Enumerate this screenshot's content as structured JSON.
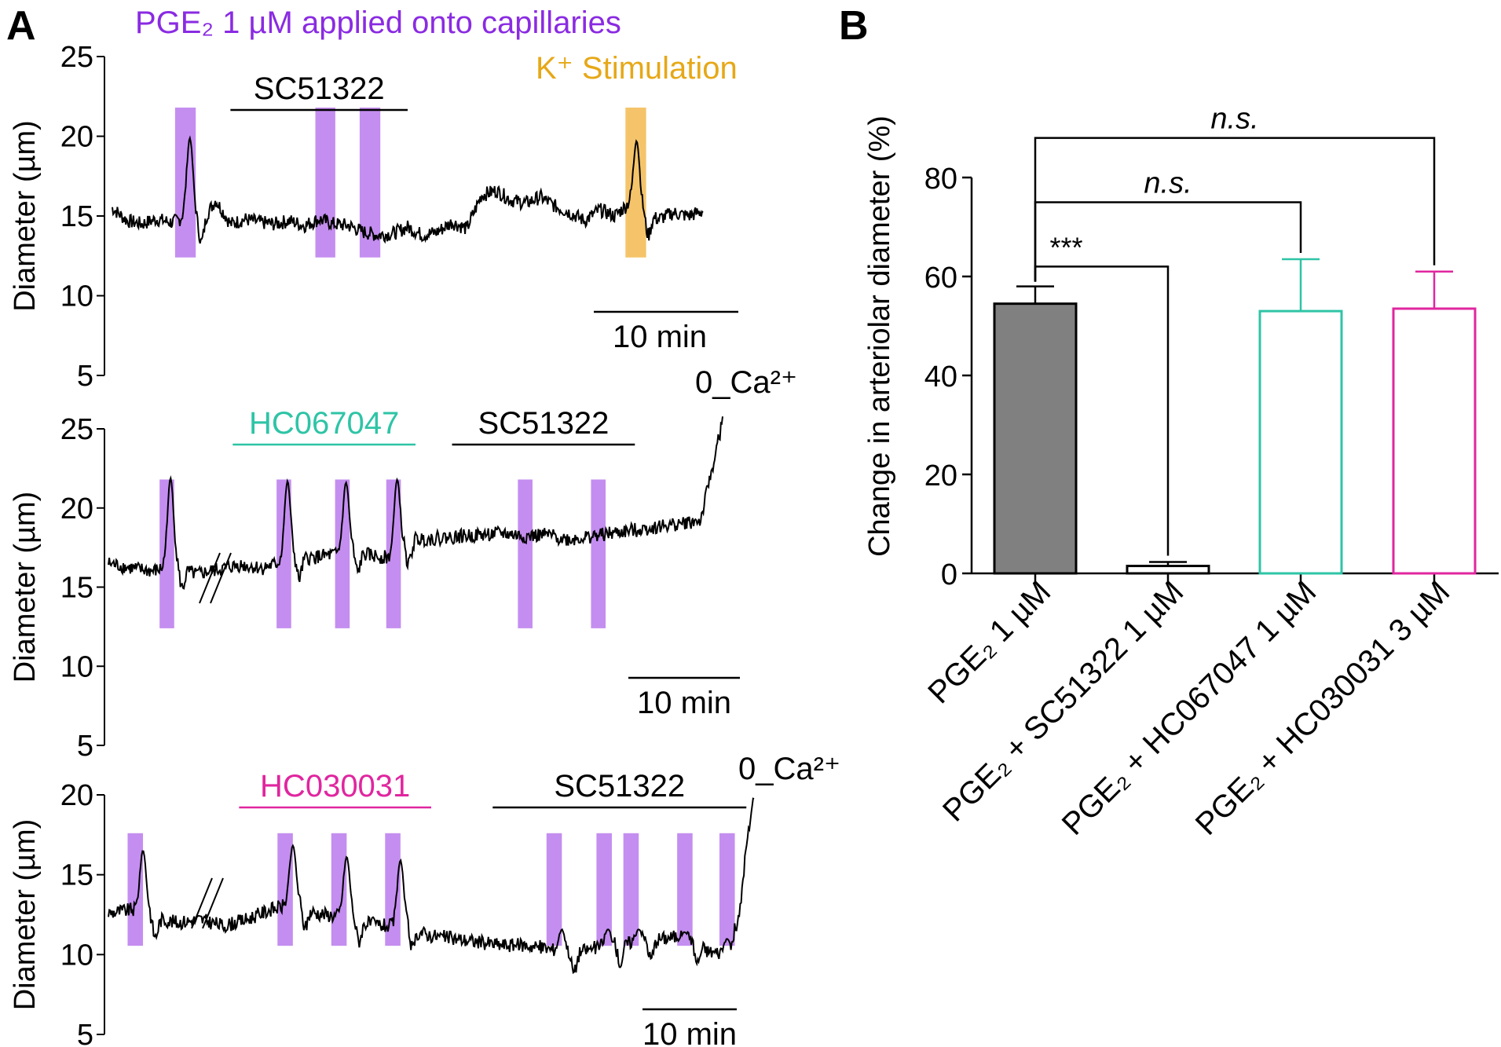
{
  "figure": {
    "panel_a_letter": "A",
    "panel_b_letter": "B",
    "panel_a_title": "PGE₂ 1 µM applied onto capillaries",
    "panel_a_title_color": "#8a2be2",
    "pge2_color": "#c48ef0",
    "k_color": "#f5c46a",
    "k_label_color": "#e6a817"
  },
  "chart_data": [
    {
      "type": "line",
      "panel": "A-top",
      "title": "PGE₂ 1 µM applied onto capillaries",
      "ylabel": "Diameter (µm)",
      "ylim": [
        5,
        25
      ],
      "yticks": [
        "5",
        "10",
        "15",
        "20",
        "25"
      ],
      "trace_color": "#000000",
      "x": [
        0,
        2,
        4,
        6,
        8,
        10,
        12,
        14,
        16,
        18,
        20,
        22,
        24,
        26,
        28,
        30,
        32,
        34,
        36,
        38,
        40,
        42,
        44,
        46,
        48,
        50,
        52,
        54,
        56,
        58,
        60,
        62,
        64,
        66,
        68,
        70,
        72,
        74,
        76,
        78,
        80
      ],
      "y": [
        15.5,
        14.7,
        14.5,
        14.8,
        14.6,
        14.9,
        14.5,
        16.0,
        14.5,
        14.8,
        14.6,
        14.5,
        14.7,
        14.4,
        14.8,
        14.5,
        14.4,
        14.0,
        13.8,
        13.9,
        14.3,
        13.8,
        14.0,
        14.6,
        14.2,
        16.3,
        16.6,
        16.0,
        15.8,
        16.2,
        15.6,
        15.2,
        14.7,
        15.4,
        15.0,
        15.8,
        15.1,
        14.8,
        15.2,
        15.0,
        15.3
      ],
      "peaks": [
        {
          "x": 10.5,
          "value": 20.0
        },
        {
          "x": 71,
          "value": 19.8
        }
      ],
      "annotations": [
        {
          "label": "SC51322",
          "color": "#000000",
          "from": 16,
          "to": 40
        },
        {
          "label": "K⁺ Stimulation",
          "color": "#e6a817",
          "from": 69.5,
          "to": 72.5
        }
      ],
      "pge2_windows": [
        [
          8.5,
          11.3
        ],
        [
          27.5,
          30.2
        ],
        [
          33.5,
          36.3
        ]
      ],
      "k_window": [
        69.5,
        72.3
      ],
      "scale_bar": "10 min",
      "end_label": ""
    },
    {
      "type": "line",
      "panel": "A-middle",
      "ylabel": "Diameter (µm)",
      "ylim": [
        5,
        25
      ],
      "yticks": [
        "5",
        "10",
        "15",
        "20",
        "25"
      ],
      "trace_color": "#000000",
      "x": [
        0,
        3,
        6,
        9,
        12,
        15,
        18,
        21,
        24,
        27,
        30,
        33,
        36,
        39,
        42,
        45,
        48,
        51,
        54,
        57,
        60,
        63,
        66,
        69,
        72,
        75,
        78,
        81,
        84
      ],
      "y": [
        16.5,
        16.2,
        16.0,
        16.3,
        15.8,
        16.1,
        16.4,
        16.2,
        16.6,
        16.8,
        17.0,
        17.2,
        17.0,
        16.8,
        18.0,
        18.1,
        18.2,
        18.3,
        18.4,
        18.2,
        18.3,
        18.0,
        18.2,
        18.4,
        18.6,
        18.8,
        19.0,
        19.2,
        25.5
      ],
      "peaks": [
        {
          "x": 8.5,
          "value": 22.0
        },
        {
          "x": 24.5,
          "value": 21.8
        },
        {
          "x": 32.5,
          "value": 21.7
        },
        {
          "x": 39.5,
          "value": 21.9
        }
      ],
      "annotations": [
        {
          "label": "HC067047",
          "color": "#2ec4a6",
          "from": 17,
          "to": 42
        },
        {
          "label": "SC51322",
          "color": "#000000",
          "from": 47,
          "to": 72
        }
      ],
      "pge2_windows": [
        [
          7.0,
          9.0
        ],
        [
          23.0,
          25.0
        ],
        [
          31.0,
          33.0
        ],
        [
          38.0,
          40.0
        ],
        [
          56.0,
          58.0
        ],
        [
          66.0,
          68.0
        ]
      ],
      "scale_bar": "10 min",
      "end_label": "0_Ca²⁺"
    },
    {
      "type": "line",
      "panel": "A-bottom",
      "ylabel": "Diameter (µm)",
      "ylim": [
        5,
        20
      ],
      "yticks": [
        "5",
        "10",
        "15",
        "20"
      ],
      "trace_color": "#000000",
      "x": [
        0,
        3,
        6,
        9,
        12,
        15,
        18,
        21,
        24,
        27,
        30,
        33,
        36,
        39,
        42,
        45,
        48,
        51,
        54,
        57,
        60,
        63,
        66,
        69,
        72,
        75,
        78,
        81,
        84
      ],
      "y": [
        12.6,
        12.8,
        12.3,
        12.0,
        12.2,
        11.8,
        12.2,
        12.8,
        13.2,
        12.6,
        12.4,
        12.0,
        11.8,
        11.6,
        11.2,
        11.0,
        10.8,
        10.6,
        10.6,
        10.4,
        10.0,
        10.4,
        10.6,
        10.8,
        11.0,
        11.2,
        10.2,
        10.0,
        20.0
      ],
      "peaks": [
        {
          "x": 4.5,
          "value": 16.6
        },
        {
          "x": 24.0,
          "value": 16.9
        },
        {
          "x": 31.0,
          "value": 16.2
        },
        {
          "x": 38.0,
          "value": 16.0
        },
        {
          "x": 59.0,
          "value": 11.6
        },
        {
          "x": 65.0,
          "value": 11.6
        },
        {
          "x": 69.0,
          "value": 11.6
        },
        {
          "x": 75.0,
          "value": 11.4
        },
        {
          "x": 80.5,
          "value": 11.0
        }
      ],
      "annotations": [
        {
          "label": "HC030031",
          "color": "#e0269f",
          "from": 17,
          "to": 42
        },
        {
          "label": "SC51322",
          "color": "#000000",
          "from": 50,
          "to": 83
        }
      ],
      "pge2_windows": [
        [
          2.5,
          4.5
        ],
        [
          22.0,
          24.0
        ],
        [
          29.0,
          31.0
        ],
        [
          36.0,
          38.0
        ],
        [
          57.0,
          59.0
        ],
        [
          63.5,
          65.5
        ],
        [
          67.0,
          69.0
        ],
        [
          74.0,
          76.0
        ],
        [
          79.5,
          81.5
        ]
      ],
      "scale_bar": "10 min",
      "end_label": "0_Ca²⁺"
    },
    {
      "type": "bar",
      "panel": "B",
      "ylabel": "Change in arteriolar diameter (%)",
      "ylim": [
        0,
        80
      ],
      "yticks": [
        "0",
        "20",
        "40",
        "60",
        "80"
      ],
      "categories": [
        "PGE₂ 1 µM",
        "PGE₂ + SC51322 1 µM",
        "PGE₂ + HC067047 1 µM",
        "PGE₂ + HC030031 3 µM"
      ],
      "values": [
        54.5,
        1.5,
        53.0,
        53.5
      ],
      "errors": [
        3.5,
        0.8,
        10.5,
        7.5
      ],
      "fills": [
        "#808080",
        "#ffffff",
        "#ffffff",
        "#ffffff"
      ],
      "edges": [
        "#000000",
        "#000000",
        "#2ec4a6",
        "#e0269f"
      ],
      "significance": [
        {
          "from": 0,
          "to": 1,
          "label": "***",
          "level": 62
        },
        {
          "from": 0,
          "to": 2,
          "label": "n.s.",
          "level": 75
        },
        {
          "from": 0,
          "to": 3,
          "label": "n.s.",
          "level": 88
        }
      ]
    }
  ]
}
